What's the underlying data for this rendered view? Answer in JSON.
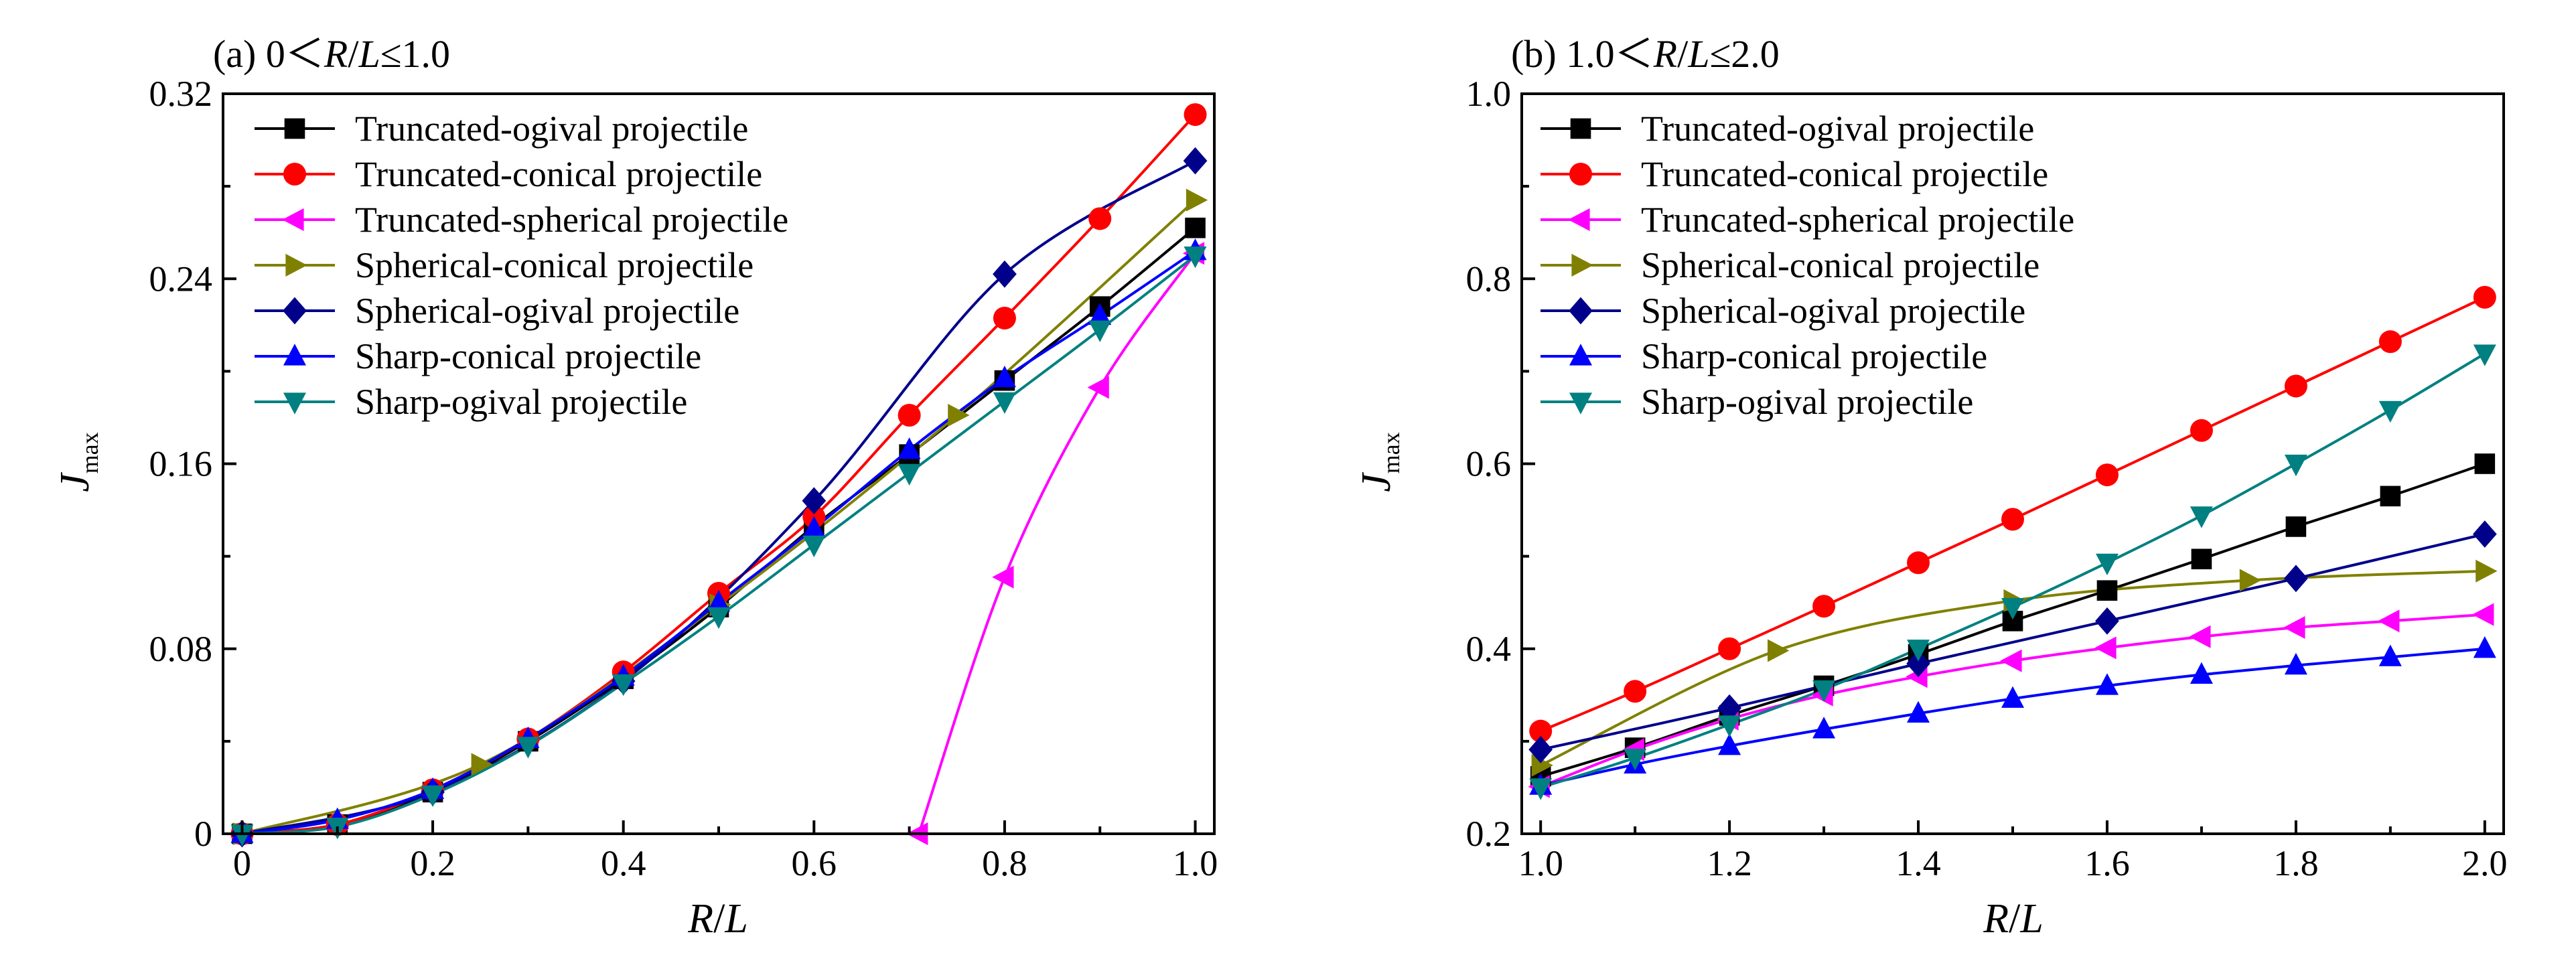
{
  "figure": {
    "panels": [
      {
        "label_prefix": "(a) 0＜",
        "label_var1": "R",
        "label_slash": "/",
        "label_var2": "L",
        "label_suffix": "≤1.0",
        "ylabel_main": "J",
        "ylabel_sub": "max",
        "xlabel_var1": "R",
        "xlabel_slash": "/",
        "xlabel_var2": "L",
        "xticks": [
          "0",
          "0.2",
          "0.4",
          "0.6",
          "0.8",
          "1.0"
        ],
        "yticks": [
          "0",
          "0.08",
          "0.16",
          "0.24",
          "0.32"
        ]
      },
      {
        "label_prefix": "(b) 1.0＜",
        "label_var1": "R",
        "label_slash": "/",
        "label_var2": "L",
        "label_suffix": "≤2.0",
        "ylabel_main": "J",
        "ylabel_sub": "max",
        "xlabel_var1": "R",
        "xlabel_slash": "/",
        "xlabel_var2": "L",
        "xticks": [
          "1.0",
          "1.2",
          "1.4",
          "1.6",
          "1.8",
          "2.0"
        ],
        "yticks": [
          "0.2",
          "0.4",
          "0.6",
          "0.8",
          "1.0"
        ]
      }
    ]
  },
  "chart_data": [
    {
      "type": "line",
      "title": "(a) 0＜R/L≤1.0",
      "xlabel": "R/L",
      "ylabel": "Jmax",
      "xlim": [
        -0.02,
        1.02
      ],
      "ylim": [
        0,
        0.32
      ],
      "grid": false,
      "legend_position": "top-left",
      "series": [
        {
          "name": "Truncated-ogival projectile",
          "color": "#000000",
          "marker": "square",
          "x": [
            0,
            0.1,
            0.2,
            0.3,
            0.4,
            0.5,
            0.6,
            0.7,
            0.8,
            0.9,
            1.0
          ],
          "y": [
            0,
            0.004,
            0.018,
            0.04,
            0.067,
            0.098,
            0.133,
            0.164,
            0.196,
            0.228,
            0.262
          ]
        },
        {
          "name": "Truncated-conical projectile",
          "color": "#ff0000",
          "marker": "circle",
          "x": [
            0,
            0.1,
            0.2,
            0.3,
            0.4,
            0.5,
            0.6,
            0.7,
            0.8,
            0.9,
            1.0
          ],
          "y": [
            0,
            0.004,
            0.019,
            0.041,
            0.07,
            0.104,
            0.137,
            0.181,
            0.223,
            0.266,
            0.311
          ]
        },
        {
          "name": "Truncated-spherical projectile",
          "color": "#ff00ff",
          "marker": "triangle-left",
          "x": [
            0.71,
            0.8,
            0.9,
            1.0
          ],
          "y": [
            0,
            0.111,
            0.193,
            0.251
          ]
        },
        {
          "name": "Spherical-conical projectile",
          "color": "#808000",
          "marker": "triangle-right",
          "x": [
            0,
            0.25,
            0.5,
            0.75,
            1.0
          ],
          "y": [
            0,
            0.03,
            0.099,
            0.181,
            0.274
          ]
        },
        {
          "name": "Spherical-ogival projectile",
          "color": "#00008b",
          "marker": "diamond",
          "x": [
            0,
            0.2,
            0.4,
            0.6,
            0.8,
            1.0
          ],
          "y": [
            0,
            0.018,
            0.066,
            0.144,
            0.242,
            0.291
          ]
        },
        {
          "name": "Sharp-conical projectile",
          "color": "#0000ff",
          "marker": "triangle-up",
          "x": [
            0,
            0.1,
            0.2,
            0.3,
            0.4,
            0.5,
            0.6,
            0.7,
            0.8,
            0.9,
            1.0
          ],
          "y": [
            0,
            0.006,
            0.019,
            0.041,
            0.068,
            0.1,
            0.132,
            0.166,
            0.197,
            0.224,
            0.252
          ]
        },
        {
          "name": "Sharp-ogival projectile",
          "color": "#008080",
          "marker": "triangle-down",
          "x": [
            0,
            0.1,
            0.2,
            0.3,
            0.4,
            0.5,
            0.6,
            0.7,
            0.8,
            0.9,
            1.0
          ],
          "y": [
            0,
            0.003,
            0.017,
            0.038,
            0.065,
            0.094,
            0.125,
            0.156,
            0.187,
            0.218,
            0.25
          ]
        }
      ]
    },
    {
      "type": "line",
      "title": "(b) 1.0＜R/L≤2.0",
      "xlabel": "R/L",
      "ylabel": "Jmax",
      "xlim": [
        0.98,
        2.02
      ],
      "ylim": [
        0.2,
        1.0
      ],
      "grid": false,
      "legend_position": "top-left",
      "series": [
        {
          "name": "Truncated-ogival projectile",
          "color": "#000000",
          "marker": "square",
          "x": [
            1.0,
            1.1,
            1.2,
            1.3,
            1.4,
            1.5,
            1.6,
            1.7,
            1.8,
            1.9,
            2.0
          ],
          "y": [
            0.262,
            0.293,
            0.328,
            0.36,
            0.394,
            0.43,
            0.463,
            0.497,
            0.532,
            0.565,
            0.6
          ]
        },
        {
          "name": "Truncated-conical projectile",
          "color": "#ff0000",
          "marker": "circle",
          "x": [
            1.0,
            1.1,
            1.2,
            1.3,
            1.4,
            1.5,
            1.6,
            1.7,
            1.8,
            1.9,
            2.0
          ],
          "y": [
            0.311,
            0.354,
            0.4,
            0.446,
            0.493,
            0.54,
            0.588,
            0.636,
            0.684,
            0.732,
            0.78
          ]
        },
        {
          "name": "Truncated-spherical projectile",
          "color": "#ff00ff",
          "marker": "triangle-left",
          "x": [
            1.0,
            1.1,
            1.2,
            1.3,
            1.4,
            1.5,
            1.6,
            1.7,
            1.8,
            1.9,
            2.0
          ],
          "y": [
            0.251,
            0.291,
            0.324,
            0.35,
            0.37,
            0.387,
            0.401,
            0.413,
            0.423,
            0.43,
            0.437
          ]
        },
        {
          "name": "Spherical-conical projectile",
          "color": "#808000",
          "marker": "triangle-right",
          "x": [
            1.0,
            1.25,
            1.5,
            1.75,
            2.0
          ],
          "y": [
            0.274,
            0.398,
            0.452,
            0.474,
            0.484
          ]
        },
        {
          "name": "Spherical-ogival projectile",
          "color": "#00008b",
          "marker": "diamond",
          "x": [
            1.0,
            1.2,
            1.4,
            1.6,
            1.8,
            2.0
          ],
          "y": [
            0.291,
            0.336,
            0.384,
            0.43,
            0.476,
            0.524
          ]
        },
        {
          "name": "Sharp-conical projectile",
          "color": "#0000ff",
          "marker": "triangle-up",
          "x": [
            1.0,
            1.1,
            1.2,
            1.3,
            1.4,
            1.5,
            1.6,
            1.7,
            1.8,
            1.9,
            2.0
          ],
          "y": [
            0.252,
            0.275,
            0.295,
            0.313,
            0.33,
            0.346,
            0.36,
            0.372,
            0.382,
            0.391,
            0.4
          ]
        },
        {
          "name": "Sharp-ogival projectile",
          "color": "#008080",
          "marker": "triangle-down",
          "x": [
            1.0,
            1.1,
            1.2,
            1.3,
            1.4,
            1.5,
            1.6,
            1.7,
            1.8,
            1.9,
            2.0
          ],
          "y": [
            0.25,
            0.282,
            0.318,
            0.356,
            0.4,
            0.445,
            0.493,
            0.544,
            0.6,
            0.658,
            0.719
          ]
        }
      ]
    }
  ]
}
